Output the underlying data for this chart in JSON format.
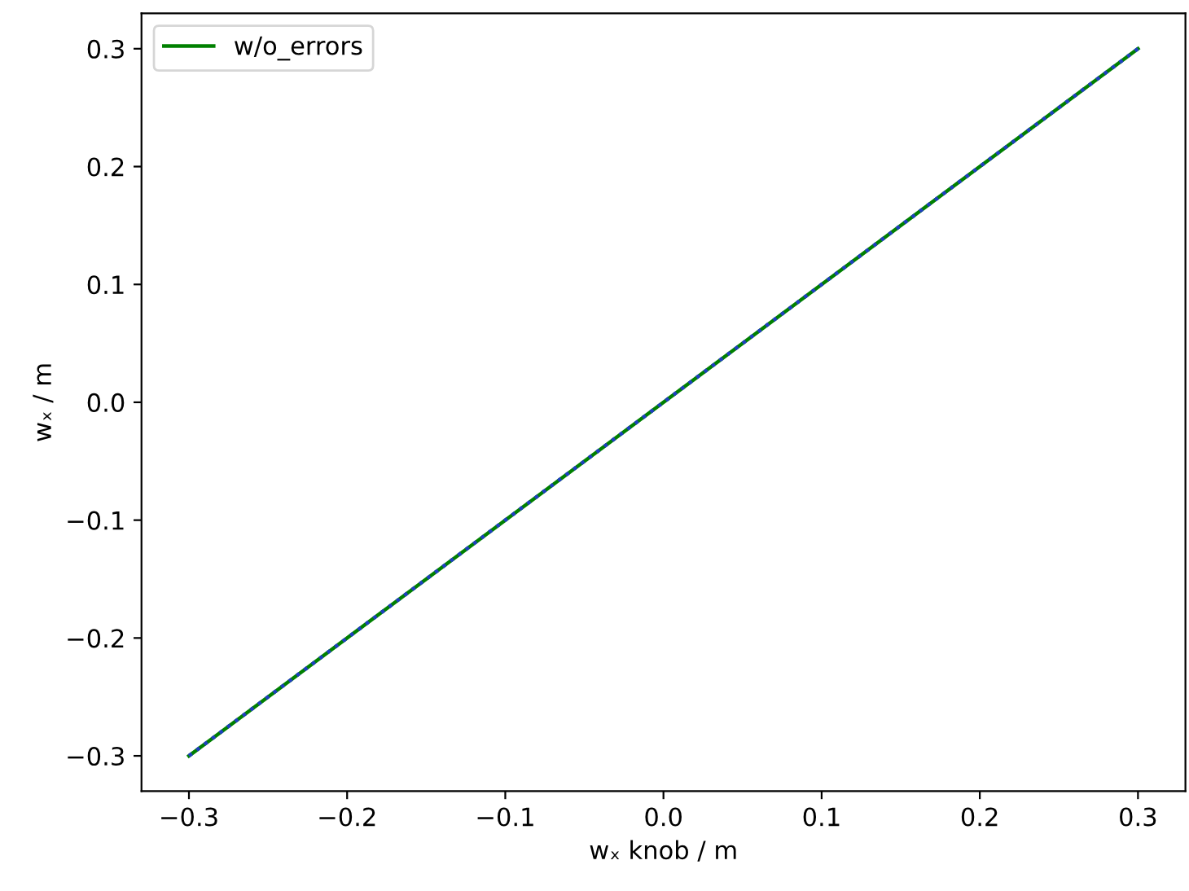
{
  "chart_data": {
    "type": "line",
    "xlabel": "wₓ knob / m",
    "ylabel": "wₓ / m",
    "x": [
      -0.3,
      0.3
    ],
    "series": [
      {
        "color": "#1f3fbf",
        "values": [
          -0.3,
          0.3
        ],
        "line_style": "dotted"
      },
      {
        "name": "w/o_errors",
        "color": "#008000",
        "values": [
          -0.3,
          0.3
        ],
        "line_style": "solid"
      }
    ],
    "xlim": [
      -0.33,
      0.33
    ],
    "ylim": [
      -0.33,
      0.33
    ],
    "xticks": [
      {
        "value": -0.3,
        "label": "−0.3"
      },
      {
        "value": -0.2,
        "label": "−0.2"
      },
      {
        "value": -0.1,
        "label": "−0.1"
      },
      {
        "value": 0.0,
        "label": "0.0"
      },
      {
        "value": 0.1,
        "label": "0.1"
      },
      {
        "value": 0.2,
        "label": "0.2"
      },
      {
        "value": 0.3,
        "label": "0.3"
      }
    ],
    "yticks": [
      {
        "value": -0.3,
        "label": "−0.3"
      },
      {
        "value": -0.2,
        "label": "−0.2"
      },
      {
        "value": -0.1,
        "label": "−0.1"
      },
      {
        "value": 0.0,
        "label": "0.0"
      },
      {
        "value": 0.1,
        "label": "0.1"
      },
      {
        "value": 0.2,
        "label": "0.2"
      },
      {
        "value": 0.3,
        "label": "0.3"
      }
    ],
    "grid": false,
    "legend": "top left",
    "marker": "none"
  }
}
